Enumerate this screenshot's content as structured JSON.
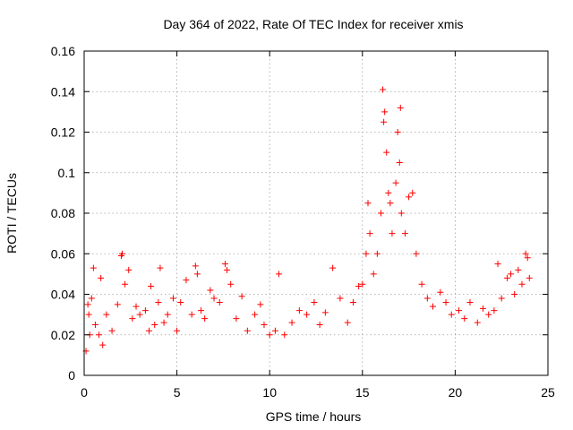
{
  "chart_data": {
    "type": "scatter",
    "title": "Day 364 of 2022, Rate Of TEC Index for receiver xmis",
    "xlabel": "GPS time / hours",
    "ylabel": "ROTI / TECUs",
    "xlim": [
      0,
      25
    ],
    "ylim": [
      0,
      0.16
    ],
    "xticks": [
      "0",
      "5",
      "10",
      "15",
      "20",
      "25"
    ],
    "yticks": [
      "0",
      "0.02",
      "0.04",
      "0.06",
      "0.08",
      "0.1",
      "0.12",
      "0.14",
      "0.16"
    ],
    "grid": true,
    "marker": "plus",
    "color": "#ff0000",
    "series": [
      {
        "name": "ROTI",
        "points": [
          [
            0.1,
            0.012
          ],
          [
            0.2,
            0.035
          ],
          [
            0.25,
            0.03
          ],
          [
            0.3,
            0.02
          ],
          [
            0.4,
            0.038
          ],
          [
            0.5,
            0.053
          ],
          [
            0.6,
            0.025
          ],
          [
            0.8,
            0.02
          ],
          [
            0.9,
            0.048
          ],
          [
            1.0,
            0.015
          ],
          [
            1.2,
            0.03
          ],
          [
            1.5,
            0.022
          ],
          [
            1.8,
            0.035
          ],
          [
            2.0,
            0.059
          ],
          [
            2.05,
            0.06
          ],
          [
            2.2,
            0.045
          ],
          [
            2.4,
            0.052
          ],
          [
            2.6,
            0.028
          ],
          [
            2.8,
            0.034
          ],
          [
            3.0,
            0.03
          ],
          [
            3.3,
            0.032
          ],
          [
            3.5,
            0.022
          ],
          [
            3.6,
            0.044
          ],
          [
            3.8,
            0.025
          ],
          [
            4.0,
            0.036
          ],
          [
            4.1,
            0.053
          ],
          [
            4.3,
            0.026
          ],
          [
            4.5,
            0.03
          ],
          [
            4.8,
            0.038
          ],
          [
            5.0,
            0.022
          ],
          [
            5.2,
            0.036
          ],
          [
            5.5,
            0.047
          ],
          [
            5.8,
            0.03
          ],
          [
            6.0,
            0.054
          ],
          [
            6.1,
            0.05
          ],
          [
            6.3,
            0.032
          ],
          [
            6.5,
            0.028
          ],
          [
            6.8,
            0.042
          ],
          [
            7.0,
            0.038
          ],
          [
            7.3,
            0.036
          ],
          [
            7.6,
            0.055
          ],
          [
            7.7,
            0.052
          ],
          [
            7.9,
            0.045
          ],
          [
            8.2,
            0.028
          ],
          [
            8.5,
            0.039
          ],
          [
            8.8,
            0.022
          ],
          [
            9.2,
            0.03
          ],
          [
            9.5,
            0.035
          ],
          [
            9.7,
            0.025
          ],
          [
            10.0,
            0.02
          ],
          [
            10.3,
            0.022
          ],
          [
            10.5,
            0.05
          ],
          [
            10.8,
            0.02
          ],
          [
            11.2,
            0.026
          ],
          [
            11.6,
            0.032
          ],
          [
            12.0,
            0.03
          ],
          [
            12.4,
            0.036
          ],
          [
            12.7,
            0.025
          ],
          [
            13.0,
            0.031
          ],
          [
            13.4,
            0.053
          ],
          [
            13.8,
            0.038
          ],
          [
            14.2,
            0.026
          ],
          [
            14.5,
            0.036
          ],
          [
            14.8,
            0.044
          ],
          [
            15.0,
            0.045
          ],
          [
            15.2,
            0.06
          ],
          [
            15.3,
            0.085
          ],
          [
            15.4,
            0.07
          ],
          [
            15.6,
            0.05
          ],
          [
            15.8,
            0.06
          ],
          [
            16.0,
            0.08
          ],
          [
            16.1,
            0.141
          ],
          [
            16.15,
            0.125
          ],
          [
            16.2,
            0.13
          ],
          [
            16.3,
            0.11
          ],
          [
            16.4,
            0.09
          ],
          [
            16.5,
            0.085
          ],
          [
            16.6,
            0.07
          ],
          [
            16.8,
            0.095
          ],
          [
            16.9,
            0.12
          ],
          [
            17.0,
            0.105
          ],
          [
            17.05,
            0.132
          ],
          [
            17.1,
            0.08
          ],
          [
            17.3,
            0.07
          ],
          [
            17.5,
            0.088
          ],
          [
            17.7,
            0.09
          ],
          [
            17.9,
            0.06
          ],
          [
            18.2,
            0.045
          ],
          [
            18.5,
            0.038
          ],
          [
            18.8,
            0.034
          ],
          [
            19.2,
            0.041
          ],
          [
            19.5,
            0.036
          ],
          [
            19.8,
            0.03
          ],
          [
            20.2,
            0.032
          ],
          [
            20.5,
            0.028
          ],
          [
            20.8,
            0.036
          ],
          [
            21.2,
            0.026
          ],
          [
            21.5,
            0.033
          ],
          [
            21.8,
            0.03
          ],
          [
            22.1,
            0.032
          ],
          [
            22.3,
            0.055
          ],
          [
            22.5,
            0.038
          ],
          [
            22.8,
            0.048
          ],
          [
            23.0,
            0.05
          ],
          [
            23.2,
            0.04
          ],
          [
            23.4,
            0.052
          ],
          [
            23.6,
            0.045
          ],
          [
            23.8,
            0.06
          ],
          [
            23.9,
            0.058
          ],
          [
            24.0,
            0.048
          ]
        ]
      }
    ]
  }
}
